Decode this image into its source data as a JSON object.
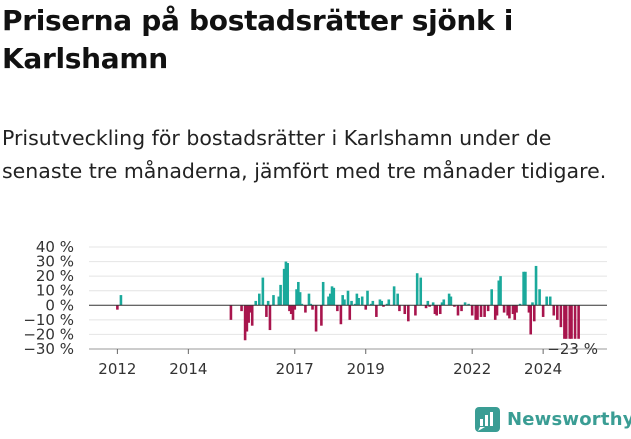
{
  "title": "Priserna på bostadsrätter sjönk i Karlshamn",
  "subtitle": "Prisutveckling för bostadsrätter i Karlshamn under de senaste tre månaderna, jämfört med tre månader tidigare.",
  "brand": {
    "name": "Newsworthy",
    "color": "#3a9d94"
  },
  "colors": {
    "positive": "#1aa99b",
    "negative": "#a8154d",
    "grid": "#e4e4e4",
    "zero": "#333333"
  },
  "chart_data": {
    "type": "bar",
    "title": "Priserna på bostadsrätter sjönk i Karlshamn",
    "subtitle": "Prisutveckling för bostadsrätter i Karlshamn under de senaste tre månaderna, jämfört med tre månader tidigare.",
    "y_unit": "%",
    "ylim": [
      -30,
      40
    ],
    "y_ticks": [
      -30,
      -20,
      -10,
      0,
      10,
      20,
      30,
      40
    ],
    "y_tick_labels": [
      "−30 %",
      "−20 %",
      "−10 %",
      "0 %",
      "10 %",
      "20 %",
      "30 %",
      "40 %"
    ],
    "x_ticks": [
      2012,
      2014,
      2017,
      2019,
      2022,
      2024
    ],
    "x_tick_labels": [
      "2012",
      "2014",
      "2017",
      "2019",
      "2022",
      "2024"
    ],
    "xlim": [
      2011.2,
      2025.8
    ],
    "grid": true,
    "last_value_label": "−23 %",
    "x": [
      2012.0,
      2012.1,
      2015.2,
      2015.5,
      2015.6,
      2015.65,
      2015.7,
      2015.75,
      2015.8,
      2015.9,
      2016.0,
      2016.1,
      2016.2,
      2016.25,
      2016.3,
      2016.4,
      2016.55,
      2016.6,
      2016.7,
      2016.75,
      2016.8,
      2016.85,
      2016.9,
      2016.95,
      2017.0,
      2017.05,
      2017.1,
      2017.15,
      2017.2,
      2017.3,
      2017.4,
      2017.45,
      2017.5,
      2017.6,
      2017.75,
      2017.8,
      2017.95,
      2018.0,
      2018.05,
      2018.1,
      2018.2,
      2018.3,
      2018.35,
      2018.4,
      2018.5,
      2018.55,
      2018.6,
      2018.7,
      2018.75,
      2018.8,
      2018.9,
      2019.0,
      2019.05,
      2019.15,
      2019.2,
      2019.3,
      2019.4,
      2019.45,
      2019.5,
      2019.6,
      2019.65,
      2019.8,
      2019.9,
      2019.95,
      2020.1,
      2020.2,
      2020.4,
      2020.45,
      2020.55,
      2020.7,
      2020.75,
      2020.8,
      2020.9,
      2020.95,
      2021.0,
      2021.1,
      2021.15,
      2021.2,
      2021.35,
      2021.4,
      2021.5,
      2021.6,
      2021.7,
      2021.8,
      2021.9,
      2022.0,
      2022.1,
      2022.15,
      2022.25,
      2022.35,
      2022.45,
      2022.55,
      2022.65,
      2022.7,
      2022.75,
      2022.8,
      2022.9,
      2023.0,
      2023.05,
      2023.15,
      2023.2,
      2023.25,
      2023.35,
      2023.45,
      2023.5,
      2023.6,
      2023.65,
      2023.7,
      2023.75,
      2023.8,
      2023.9,
      2024.0,
      2024.1,
      2024.2,
      2024.3,
      2024.4,
      2024.5,
      2024.6,
      2024.65,
      2024.75,
      2024.8,
      2024.9,
      2025.0
    ],
    "values": [
      -3,
      7,
      -10,
      -4,
      -24,
      -18,
      -12,
      -5,
      -14,
      3,
      8,
      19,
      -8,
      3,
      -17,
      7,
      6,
      14,
      25,
      30,
      29,
      -4,
      -6,
      -10,
      -3,
      11,
      16,
      9,
      1,
      -5,
      8,
      1,
      -3,
      -18,
      -14,
      16,
      6,
      8,
      13,
      12,
      -4,
      -13,
      7,
      4,
      10,
      -10,
      3,
      1,
      8,
      5,
      6,
      -3,
      10,
      1,
      3,
      -8,
      4,
      3,
      -1,
      1,
      4,
      13,
      8,
      -4,
      -6,
      -11,
      -7,
      22,
      19,
      -2,
      3,
      -1,
      2,
      -6,
      -7,
      -6,
      2,
      4,
      8,
      6,
      -1,
      -7,
      -4,
      2,
      1,
      -7,
      -10,
      -10,
      -8,
      -8,
      -4,
      11,
      -10,
      -7,
      17,
      20,
      -5,
      -7,
      -9,
      -6,
      -10,
      -5,
      1,
      23,
      23,
      -5,
      -20,
      2,
      -11,
      27,
      11,
      -8,
      6,
      6,
      -7,
      -10,
      -15,
      -23,
      -23,
      -23,
      -23,
      -23,
      -23
    ]
  }
}
